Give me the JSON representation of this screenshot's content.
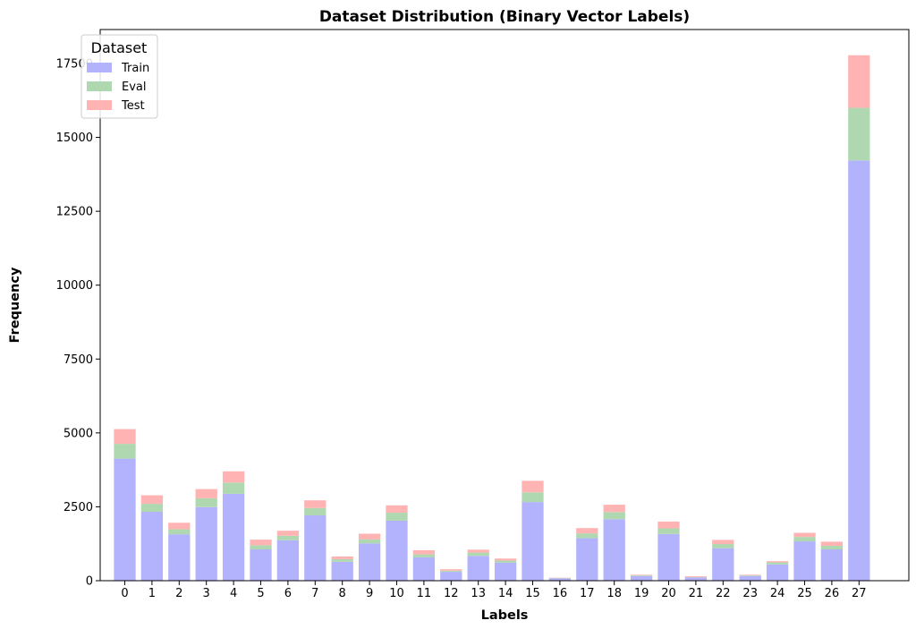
{
  "chart_data": {
    "type": "bar",
    "stacked": true,
    "title": "Dataset Distribution (Binary Vector Labels)",
    "xlabel": "Labels",
    "ylabel": "Frequency",
    "categories": [
      "0",
      "1",
      "2",
      "3",
      "4",
      "5",
      "6",
      "7",
      "8",
      "9",
      "10",
      "11",
      "12",
      "13",
      "14",
      "15",
      "16",
      "17",
      "18",
      "19",
      "20",
      "21",
      "22",
      "23",
      "24",
      "25",
      "26",
      "27"
    ],
    "ylim": [
      0,
      18650
    ],
    "yticks": [
      0,
      2500,
      5000,
      7500,
      10000,
      12500,
      15000,
      17500
    ],
    "legend": {
      "title": "Dataset",
      "position": "top-left"
    },
    "series": [
      {
        "name": "Train",
        "color": "#b3b3fd",
        "values": [
          4130,
          2330,
          1570,
          2490,
          2940,
          1060,
          1370,
          2210,
          640,
          1260,
          2030,
          790,
          300,
          840,
          610,
          2660,
          80,
          1440,
          2080,
          160,
          1580,
          110,
          1100,
          160,
          550,
          1330,
          1060,
          14220
        ]
      },
      {
        "name": "Eval",
        "color": "#b0d8b0",
        "values": [
          500,
          270,
          170,
          300,
          380,
          140,
          150,
          250,
          90,
          140,
          270,
          100,
          40,
          110,
          70,
          330,
          10,
          160,
          240,
          20,
          190,
          10,
          140,
          20,
          70,
          150,
          120,
          1780
        ]
      },
      {
        "name": "Test",
        "color": "#ffb3b3",
        "values": [
          500,
          290,
          220,
          310,
          380,
          190,
          170,
          260,
          90,
          190,
          250,
          140,
          50,
          100,
          70,
          390,
          10,
          180,
          250,
          20,
          230,
          30,
          140,
          20,
          40,
          140,
          140,
          1780
        ]
      }
    ]
  }
}
